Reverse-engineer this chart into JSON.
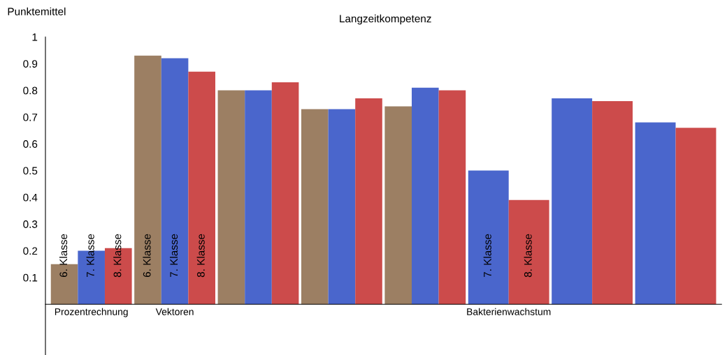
{
  "chart_data": {
    "type": "bar",
    "title": "Langzeitkompetenz",
    "ylabel": "Punktemittel",
    "categories": [
      "Prozentrechnung",
      "Vektoren",
      null,
      null,
      null,
      "Bakterienwachstum",
      null,
      null
    ],
    "series": [
      {
        "name": "6. Klasse",
        "color": "#9c7f63",
        "values": [
          0.15,
          0.93,
          0.8,
          0.73,
          0.74,
          null,
          null,
          null
        ]
      },
      {
        "name": "7. Klasse",
        "color": "#4a66cc",
        "values": [
          0.2,
          0.92,
          0.8,
          0.73,
          0.81,
          0.5,
          0.77,
          0.68
        ]
      },
      {
        "name": "8. Klasse",
        "color": "#cc4b4b",
        "values": [
          0.21,
          0.87,
          0.83,
          0.77,
          0.8,
          0.39,
          0.76,
          0.66
        ]
      }
    ],
    "ylim": [
      -0.19,
      1
    ],
    "yticks": [
      0.1,
      0.2,
      0.3,
      0.4,
      0.5,
      0.6,
      0.7,
      0.8,
      0.9,
      1
    ],
    "grid": false,
    "legend": false
  }
}
